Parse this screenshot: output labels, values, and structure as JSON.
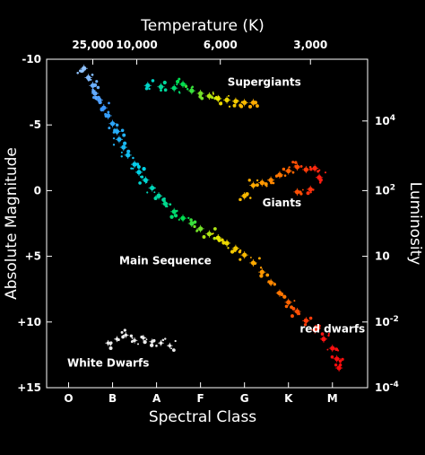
{
  "chart_data": {
    "type": "scatter",
    "title": "",
    "top_axis_title": "Temperature (K)",
    "top_ticks": [
      {
        "label": "25,000",
        "class_pos": 0.55
      },
      {
        "label": "10,000",
        "class_pos": 1.55
      },
      {
        "label": "6,000",
        "class_pos": 3.45
      },
      {
        "label": "3,000",
        "class_pos": 5.5
      }
    ],
    "xlabel": "Spectral Class",
    "x_categories": [
      "O",
      "B",
      "A",
      "F",
      "G",
      "K",
      "M"
    ],
    "xlim": [
      -0.5,
      6.8
    ],
    "ylabel_left": "Absolute Magnitude",
    "ylim_left": [
      -10,
      15
    ],
    "left_ticks": [
      "-10",
      "-5",
      "0",
      "+5",
      "+10",
      "+15"
    ],
    "left_tick_values": [
      -10,
      -5,
      0,
      5,
      10,
      15
    ],
    "ylabel_right": "Luminosity",
    "right_ticks": [
      {
        "base": "10",
        "exp": "4",
        "magnitude": -5.3
      },
      {
        "base": "10",
        "exp": "2",
        "magnitude": 0
      },
      {
        "base": "10",
        "exp": "",
        "magnitude": 5
      },
      {
        "base": "10",
        "exp": "-2",
        "magnitude": 10
      },
      {
        "base": "10",
        "exp": "-4",
        "magnitude": 15
      }
    ],
    "grid": false,
    "regions": [
      {
        "label": "Supergiants",
        "x": 4.45,
        "y": -8
      },
      {
        "label": "Giants",
        "x": 4.85,
        "y": 1.2
      },
      {
        "label": "Main Sequence",
        "x": 2.2,
        "y": 5.6
      },
      {
        "label": "red dwarfs",
        "x": 6.0,
        "y": 10.8
      },
      {
        "label": "White Dwarfs",
        "x": 0.9,
        "y": 13.4
      }
    ],
    "series": [
      {
        "group": "main-sequence",
        "points": [
          [
            0.35,
            -9.3
          ],
          [
            0.45,
            -8.6
          ],
          [
            0.55,
            -8.0
          ],
          [
            0.6,
            -7.4
          ],
          [
            0.7,
            -6.9
          ],
          [
            0.8,
            -6.3
          ],
          [
            0.9,
            -5.7
          ],
          [
            1.0,
            -5.1
          ],
          [
            1.1,
            -4.5
          ],
          [
            1.15,
            -3.9
          ],
          [
            1.25,
            -3.3
          ],
          [
            1.35,
            -2.7
          ],
          [
            1.5,
            -2.0
          ],
          [
            1.6,
            -1.4
          ],
          [
            1.75,
            -0.8
          ],
          [
            1.9,
            -0.2
          ],
          [
            2.05,
            0.4
          ],
          [
            2.2,
            1.0
          ],
          [
            2.4,
            1.6
          ],
          [
            2.6,
            2.1
          ],
          [
            2.8,
            2.5
          ],
          [
            3.0,
            2.9
          ],
          [
            3.2,
            3.3
          ],
          [
            3.4,
            3.6
          ],
          [
            3.6,
            4.0
          ],
          [
            3.8,
            4.4
          ],
          [
            4.0,
            4.9
          ],
          [
            4.2,
            5.5
          ],
          [
            4.4,
            6.2
          ],
          [
            4.6,
            7.0
          ],
          [
            4.8,
            7.8
          ],
          [
            5.0,
            8.5
          ],
          [
            5.2,
            9.2
          ],
          [
            5.4,
            9.9
          ],
          [
            5.6,
            10.6
          ],
          [
            5.8,
            11.3
          ],
          [
            6.0,
            12.0
          ],
          [
            6.1,
            12.8
          ],
          [
            6.15,
            13.5
          ]
        ]
      },
      {
        "group": "supergiants",
        "points": [
          [
            1.8,
            -8.0
          ],
          [
            2.1,
            -7.9
          ],
          [
            2.4,
            -7.8
          ],
          [
            2.6,
            -8.1
          ],
          [
            2.8,
            -7.6
          ],
          [
            3.0,
            -7.4
          ],
          [
            3.2,
            -7.2
          ],
          [
            3.4,
            -7.0
          ],
          [
            3.6,
            -6.9
          ],
          [
            3.8,
            -6.8
          ],
          [
            4.0,
            -6.7
          ],
          [
            4.2,
            -6.7
          ]
        ]
      },
      {
        "group": "giants",
        "points": [
          [
            4.0,
            0.4
          ],
          [
            4.2,
            -0.4
          ],
          [
            4.4,
            -0.6
          ],
          [
            4.6,
            -0.8
          ],
          [
            4.8,
            -1.2
          ],
          [
            5.0,
            -1.5
          ],
          [
            5.2,
            -1.8
          ],
          [
            5.4,
            -1.6
          ],
          [
            5.6,
            -1.7
          ],
          [
            5.7,
            -1.0
          ],
          [
            5.5,
            -0.1
          ],
          [
            5.2,
            0.1
          ]
        ]
      },
      {
        "group": "white-dwarfs",
        "points": [
          [
            0.9,
            11.6
          ],
          [
            1.1,
            11.3
          ],
          [
            1.3,
            11.0
          ],
          [
            1.5,
            11.4
          ],
          [
            1.7,
            11.2
          ],
          [
            1.9,
            11.5
          ],
          [
            2.1,
            11.6
          ],
          [
            2.3,
            11.8
          ]
        ]
      }
    ]
  }
}
